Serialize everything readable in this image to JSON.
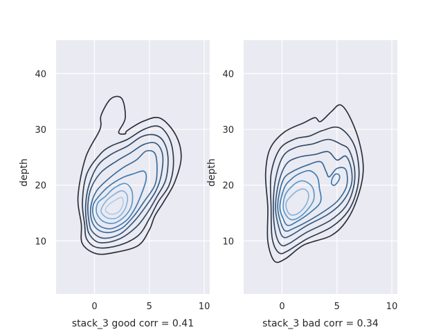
{
  "chart_data": [
    {
      "type": "contour",
      "title": "",
      "xlabel": "stack_3 good corr = 0.41",
      "ylabel": "depth",
      "xlim": [
        -3.5,
        10.5
      ],
      "ylim": [
        0.5,
        46
      ],
      "x_ticks": [
        0,
        5,
        10
      ],
      "y_ticks": [
        10,
        20,
        30,
        40
      ],
      "grid": true,
      "levels": [
        {
          "level": 1,
          "color": "#2b2f3a",
          "points": [
            [
              -1.2,
              13
            ],
            [
              -1.1,
              9.5
            ],
            [
              0.2,
              7.7
            ],
            [
              2,
              8
            ],
            [
              4,
              9.2
            ],
            [
              5,
              12
            ],
            [
              5.5,
              14.5
            ],
            [
              6.3,
              17
            ],
            [
              7.3,
              20.5
            ],
            [
              7.9,
              25
            ],
            [
              7.4,
              29
            ],
            [
              6,
              32
            ],
            [
              4.5,
              31.5
            ],
            [
              3,
              29.8
            ],
            [
              2.8,
              29.2
            ],
            [
              2.2,
              29.5
            ],
            [
              2.8,
              32
            ],
            [
              2.5,
              35.5
            ],
            [
              1.5,
              35.5
            ],
            [
              0.6,
              32.5
            ],
            [
              0.5,
              30
            ],
            [
              -0.8,
              25
            ],
            [
              -1.5,
              18
            ]
          ]
        },
        {
          "level": 2,
          "color": "#2e3a4c",
          "points": [
            [
              -0.9,
              13
            ],
            [
              -0.7,
              10.3
            ],
            [
              0.3,
              8.8
            ],
            [
              2.2,
              9.2
            ],
            [
              4,
              11
            ],
            [
              5,
              14
            ],
            [
              5.8,
              17
            ],
            [
              6.8,
              20
            ],
            [
              7.2,
              24
            ],
            [
              6.9,
              28
            ],
            [
              5.9,
              30.5
            ],
            [
              4.5,
              30
            ],
            [
              3,
              28.2
            ],
            [
              1.5,
              27
            ],
            [
              0.5,
              25.5
            ],
            [
              -0.7,
              22
            ],
            [
              -1.1,
              17
            ]
          ]
        },
        {
          "level": 3,
          "color": "#324a66",
          "points": [
            [
              -0.7,
              13
            ],
            [
              -0.4,
              11
            ],
            [
              0.5,
              9.7
            ],
            [
              2.2,
              10.3
            ],
            [
              3.8,
              12.5
            ],
            [
              4.8,
              15
            ],
            [
              5.7,
              18
            ],
            [
              6.5,
              21
            ],
            [
              6.7,
              25
            ],
            [
              6.3,
              27.8
            ],
            [
              5.5,
              29
            ],
            [
              4.3,
              28.7
            ],
            [
              3,
              27
            ],
            [
              1.5,
              25.5
            ],
            [
              0.3,
              23.5
            ],
            [
              -0.5,
              20
            ],
            [
              -0.8,
              16.5
            ]
          ]
        },
        {
          "level": 4,
          "color": "#35597f",
          "points": [
            [
              -0.5,
              13.5
            ],
            [
              -0.2,
              11.7
            ],
            [
              0.8,
              10.5
            ],
            [
              2.3,
              11.2
            ],
            [
              3.6,
              13.5
            ],
            [
              4.6,
              16
            ],
            [
              5.6,
              19
            ],
            [
              6.1,
              22
            ],
            [
              6.2,
              25.5
            ],
            [
              5.6,
              27.5
            ],
            [
              4.5,
              27.3
            ],
            [
              3.3,
              25.8
            ],
            [
              2,
              24.3
            ],
            [
              0.6,
              22.3
            ],
            [
              -0.3,
              19.5
            ],
            [
              -0.6,
              16.5
            ]
          ]
        },
        {
          "level": 5,
          "color": "#3a6a97",
          "points": [
            [
              -0.3,
              14
            ],
            [
              0.2,
              12.2
            ],
            [
              1.2,
              11.5
            ],
            [
              2.5,
              12.3
            ],
            [
              3.6,
              14.5
            ],
            [
              4.5,
              17
            ],
            [
              5.5,
              20
            ],
            [
              5.7,
              23
            ],
            [
              5.5,
              25.7
            ],
            [
              4.7,
              26.1
            ],
            [
              3.8,
              24.5
            ],
            [
              2.5,
              23
            ],
            [
              1.2,
              21
            ],
            [
              0.2,
              19
            ],
            [
              -0.3,
              16.5
            ]
          ]
        },
        {
          "level": 6,
          "color": "#3f7bb0",
          "points": [
            [
              -0.1,
              14.5
            ],
            [
              0.4,
              12.8
            ],
            [
              1.5,
              12.2
            ],
            [
              2.8,
              13.5
            ],
            [
              3.6,
              15.5
            ],
            [
              4.2,
              18
            ],
            [
              4.7,
              21
            ],
            [
              4.5,
              22.5
            ],
            [
              3.5,
              22
            ],
            [
              2.5,
              21.3
            ],
            [
              1.3,
              19.8
            ],
            [
              0.4,
              18
            ],
            [
              -0.1,
              16.5
            ]
          ]
        },
        {
          "level": 7,
          "color": "#5b97c8",
          "points": [
            [
              0.2,
              15
            ],
            [
              0.8,
              13.5
            ],
            [
              1.8,
              13.2
            ],
            [
              2.8,
              14.5
            ],
            [
              3.4,
              16.5
            ],
            [
              3.4,
              19
            ],
            [
              2.8,
              20.3
            ],
            [
              1.8,
              19.5
            ],
            [
              1,
              18
            ],
            [
              0.3,
              16.8
            ]
          ]
        },
        {
          "level": 8,
          "color": "#88b3dc",
          "points": [
            [
              0.6,
              15.3
            ],
            [
              1.2,
              14.1
            ],
            [
              2.1,
              14.2
            ],
            [
              2.8,
              15.8
            ],
            [
              3,
              18
            ],
            [
              2.5,
              19
            ],
            [
              1.7,
              18.2
            ],
            [
              1,
              17
            ]
          ]
        },
        {
          "level": 9,
          "color": "#b2cce8",
          "points": [
            [
              1,
              15.5
            ],
            [
              1.5,
              14.8
            ],
            [
              2.2,
              15.2
            ],
            [
              2.6,
              16.6
            ],
            [
              2.5,
              17.8
            ],
            [
              1.9,
              17.3
            ],
            [
              1.3,
              16.5
            ]
          ]
        }
      ]
    },
    {
      "type": "contour",
      "title": "",
      "xlabel": "stack_3 bad corr = 0.34",
      "ylabel": "depth",
      "xlim": [
        -3.5,
        10.5
      ],
      "ylim": [
        0.5,
        46
      ],
      "x_ticks": [
        0,
        5,
        10
      ],
      "y_ticks": [
        10,
        20,
        30,
        40
      ],
      "grid": true,
      "levels": [
        {
          "level": 1,
          "color": "#2b2f3a",
          "points": [
            [
              -1.3,
              16
            ],
            [
              -1.3,
              10
            ],
            [
              -0.7,
              6.4
            ],
            [
              0.3,
              6.8
            ],
            [
              2,
              9.3
            ],
            [
              4.5,
              11
            ],
            [
              6,
              14
            ],
            [
              7,
              18.5
            ],
            [
              7.4,
              23
            ],
            [
              7,
              28
            ],
            [
              6.1,
              32.5
            ],
            [
              5.3,
              34.4
            ],
            [
              4.5,
              33.2
            ],
            [
              3.5,
              31.4
            ],
            [
              3,
              32.1
            ],
            [
              2,
              31.2
            ],
            [
              0.2,
              29.5
            ],
            [
              -1.1,
              26.5
            ],
            [
              -1.5,
              22
            ]
          ]
        },
        {
          "level": 2,
          "color": "#2e3a4c",
          "points": [
            [
              -1,
              16
            ],
            [
              -0.9,
              10.5
            ],
            [
              -0.3,
              7.9
            ],
            [
              0.5,
              8.2
            ],
            [
              2.2,
              10.3
            ],
            [
              4.5,
              12.5
            ],
            [
              6,
              15.3
            ],
            [
              6.8,
              19
            ],
            [
              7,
              23
            ],
            [
              6.5,
              27.5
            ],
            [
              5.2,
              30.3
            ],
            [
              3.7,
              29.8
            ],
            [
              2.5,
              28.8
            ],
            [
              1.2,
              28.3
            ],
            [
              -0.2,
              26.5
            ],
            [
              -1,
              22
            ]
          ]
        },
        {
          "level": 3,
          "color": "#324a66",
          "points": [
            [
              -0.8,
              16
            ],
            [
              -0.6,
              11.5
            ],
            [
              -0.1,
              9.3
            ],
            [
              0.6,
              9.5
            ],
            [
              2.2,
              11.5
            ],
            [
              4.4,
              13.7
            ],
            [
              5.8,
              16.2
            ],
            [
              6.5,
              19.5
            ],
            [
              6.6,
              23
            ],
            [
              6.1,
              26.3
            ],
            [
              5.4,
              27.3
            ],
            [
              4.2,
              28.2
            ],
            [
              2.8,
              27.4
            ],
            [
              1.3,
              26.8
            ],
            [
              0.1,
              25.2
            ],
            [
              -0.6,
              21
            ]
          ]
        },
        {
          "level": 4,
          "color": "#35597f",
          "points": [
            [
              -0.6,
              16
            ],
            [
              -0.3,
              12.5
            ],
            [
              0.1,
              10.7
            ],
            [
              0.8,
              11
            ],
            [
              2.3,
              12.8
            ],
            [
              4.2,
              14.8
            ],
            [
              5.5,
              17
            ],
            [
              6.3,
              20
            ],
            [
              6.3,
              23
            ],
            [
              5.8,
              25.2
            ],
            [
              5,
              24.5
            ],
            [
              4.2,
              26
            ],
            [
              3,
              25.5
            ],
            [
              1.5,
              25
            ],
            [
              0.4,
              23.8
            ],
            [
              -0.3,
              20.5
            ]
          ]
        },
        {
          "level": 5,
          "color": "#3a6a97",
          "points": [
            [
              -0.4,
              16
            ],
            [
              -0.1,
              13.2
            ],
            [
              0.3,
              11.8
            ],
            [
              1,
              12.2
            ],
            [
              2.5,
              13.7
            ],
            [
              4.2,
              15.8
            ],
            [
              5.2,
              17.5
            ],
            [
              5.9,
              20
            ],
            [
              5.8,
              22.8
            ],
            [
              5,
              23
            ],
            [
              4.3,
              21.5
            ],
            [
              4,
              22.5
            ],
            [
              3.5,
              24.2
            ],
            [
              2.3,
              23.6
            ],
            [
              1,
              22.5
            ],
            [
              0.2,
              21.3
            ],
            [
              -0.2,
              19
            ]
          ]
        },
        {
          "level": 6,
          "color": "#3f7bb0",
          "points": [
            [
              -0.2,
              16.2
            ],
            [
              0.1,
              14
            ],
            [
              0.5,
              12.8
            ],
            [
              1.2,
              13.3
            ],
            [
              2.5,
              15
            ],
            [
              3.5,
              17
            ],
            [
              3.4,
              19.5
            ],
            [
              3.2,
              21.5
            ],
            [
              2.5,
              22.6
            ],
            [
              1.5,
              22
            ],
            [
              0.8,
              21
            ],
            [
              0.2,
              19.5
            ]
          ]
        },
        {
          "level": 7,
          "color": "#5b97c8",
          "points": [
            [
              0.1,
              16
            ],
            [
              0.4,
              14.5
            ],
            [
              0.9,
              13.8
            ],
            [
              1.6,
              14.3
            ],
            [
              2.4,
              15.8
            ],
            [
              2.9,
              17.5
            ],
            [
              2.8,
              19.5
            ],
            [
              2.2,
              20.6
            ],
            [
              1.6,
              20.7
            ],
            [
              0.9,
              19.8
            ],
            [
              0.3,
              18.3
            ]
          ]
        },
        {
          "level": 8,
          "color": "#88b3dc",
          "points": [
            [
              0.4,
              15.8
            ],
            [
              0.7,
              14.8
            ],
            [
              1.2,
              14.7
            ],
            [
              1.8,
              15.5
            ],
            [
              2.3,
              17
            ],
            [
              2.4,
              18.5
            ],
            [
              2,
              19.3
            ],
            [
              1.4,
              19
            ],
            [
              0.8,
              18
            ],
            [
              0.4,
              17
            ]
          ]
        },
        {
          "level": 9,
          "color": "#3f7bb0",
          "points": [
            [
              4.8,
              20
            ],
            [
              5.2,
              21
            ],
            [
              5.2,
              21.8
            ],
            [
              4.9,
              22
            ],
            [
              4.6,
              21.3
            ],
            [
              4.5,
              20.3
            ]
          ]
        }
      ]
    }
  ]
}
